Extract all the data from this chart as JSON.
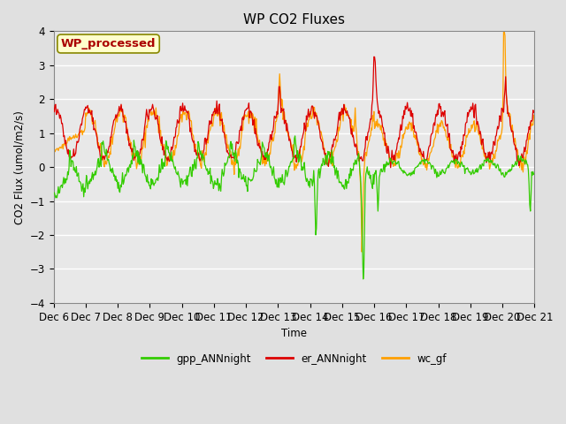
{
  "title": "WP CO2 Fluxes",
  "ylabel": "CO2 Flux (umol/m2/s)",
  "xlabel": "Time",
  "ylim": [
    -4.0,
    4.0
  ],
  "yticks": [
    -4.0,
    -3.0,
    -2.0,
    -1.0,
    0.0,
    1.0,
    2.0,
    3.0,
    4.0
  ],
  "xlim_days": [
    6,
    21
  ],
  "xtick_positions": [
    6,
    7,
    8,
    9,
    10,
    11,
    12,
    13,
    14,
    15,
    16,
    17,
    18,
    19,
    20,
    21
  ],
  "xtick_labels": [
    "Dec 6",
    "Dec 7",
    "Dec 8",
    "Dec 9",
    "Dec 10",
    "Dec 11",
    "Dec 12",
    "Dec 13",
    "Dec 14",
    "Dec 15",
    "Dec 16",
    "Dec 17",
    "Dec 18",
    "Dec 19",
    "Dec 20",
    "Dec 21"
  ],
  "series_colors": {
    "gpp": "#33cc00",
    "er": "#dd0000",
    "wc": "#ffa000"
  },
  "legend_labels": [
    "gpp_ANNnight",
    "er_ANNnight",
    "wc_gf"
  ],
  "watermark_text": "WP_processed",
  "watermark_color": "#aa0000",
  "watermark_bg": "#ffffcc",
  "watermark_edge": "#888800",
  "bg_color": "#e0e0e0",
  "plot_bg": "#e8e8e8",
  "grid_color": "#ffffff",
  "linewidth": 0.9,
  "n_points": 720
}
